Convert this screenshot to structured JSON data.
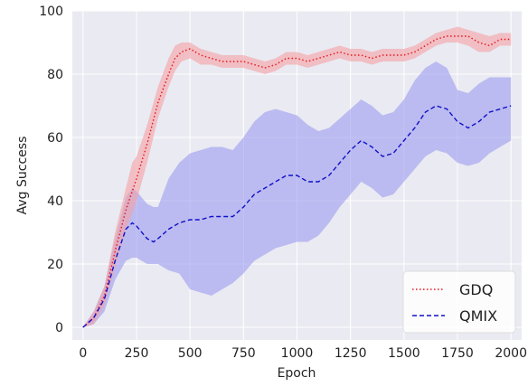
{
  "chart_data": {
    "type": "line",
    "xlabel": "Epoch",
    "ylabel": "Avg Success",
    "xlim": [
      -50,
      2050
    ],
    "ylim": [
      -4,
      100
    ],
    "xticks": [
      0,
      250,
      500,
      750,
      1000,
      1250,
      1500,
      1750,
      2000
    ],
    "yticks": [
      0,
      20,
      40,
      60,
      80,
      100
    ],
    "grid": true,
    "legend_position": "bottom-right",
    "colors": {
      "background": "#eaeaf2",
      "grid": "#ffffff"
    },
    "series": [
      {
        "name": "GDQ",
        "style": "dotted",
        "color": "#e8141c",
        "band_color": "#f4a0a4",
        "x": [
          0,
          50,
          100,
          150,
          200,
          230,
          250,
          300,
          350,
          400,
          430,
          460,
          500,
          550,
          600,
          650,
          700,
          750,
          800,
          850,
          900,
          950,
          1000,
          1050,
          1100,
          1150,
          1200,
          1250,
          1300,
          1350,
          1400,
          1450,
          1500,
          1550,
          1600,
          1650,
          1700,
          1750,
          1800,
          1850,
          1900,
          1950,
          2000
        ],
        "y": [
          0,
          3,
          10,
          24,
          37,
          43,
          47,
          58,
          71,
          80,
          85,
          87,
          88,
          86,
          85,
          84,
          84,
          84,
          83,
          82,
          83,
          85,
          85,
          84,
          85,
          86,
          87,
          86,
          86,
          85,
          86,
          86,
          86,
          87,
          89,
          91,
          92,
          92,
          92,
          90,
          89,
          91,
          91
        ],
        "lower": [
          0,
          1,
          7,
          19,
          31,
          36,
          40,
          52,
          66,
          76,
          81,
          84,
          85,
          83,
          83,
          82,
          82,
          82,
          81,
          80,
          81,
          83,
          83,
          82,
          83,
          84,
          85,
          84,
          84,
          83,
          84,
          84,
          84,
          85,
          87,
          89,
          90,
          90,
          89,
          87,
          87,
          89,
          89
        ],
        "upper": [
          0,
          5,
          13,
          30,
          44,
          52,
          54,
          64,
          76,
          85,
          89,
          90,
          90,
          88,
          87,
          86,
          86,
          86,
          85,
          84,
          85,
          87,
          87,
          86,
          87,
          88,
          89,
          88,
          88,
          87,
          88,
          88,
          88,
          89,
          91,
          93,
          94,
          95,
          94,
          93,
          92,
          93,
          93
        ]
      },
      {
        "name": "QMIX",
        "style": "dashed",
        "color": "#1010c8",
        "band_color": "#9b9bf0",
        "x": [
          0,
          50,
          100,
          150,
          200,
          230,
          250,
          300,
          330,
          350,
          400,
          450,
          500,
          550,
          600,
          650,
          700,
          750,
          800,
          850,
          900,
          950,
          1000,
          1050,
          1100,
          1150,
          1200,
          1250,
          1300,
          1350,
          1400,
          1450,
          1500,
          1550,
          1600,
          1650,
          1700,
          1750,
          1800,
          1850,
          1900,
          1950,
          2000
        ],
        "y": [
          0,
          3,
          9,
          21,
          31,
          33,
          32,
          28,
          27,
          28,
          31,
          33,
          34,
          34,
          35,
          35,
          35,
          38,
          42,
          44,
          46,
          48,
          48,
          46,
          46,
          48,
          52,
          56,
          59,
          57,
          54,
          55,
          59,
          63,
          68,
          70,
          69,
          65,
          63,
          65,
          68,
          69,
          70
        ],
        "lower": [
          0,
          1,
          5,
          15,
          21,
          22,
          22,
          20,
          20,
          20,
          18,
          17,
          12,
          11,
          10,
          12,
          14,
          17,
          21,
          23,
          25,
          26,
          27,
          27,
          29,
          33,
          38,
          42,
          46,
          44,
          41,
          42,
          46,
          50,
          54,
          56,
          55,
          52,
          51,
          52,
          55,
          57,
          59
        ],
        "upper": [
          0,
          5,
          13,
          28,
          41,
          44,
          43,
          39,
          38,
          38,
          47,
          52,
          55,
          56,
          57,
          57,
          56,
          60,
          65,
          68,
          69,
          68,
          67,
          64,
          62,
          63,
          66,
          69,
          72,
          70,
          67,
          68,
          72,
          78,
          82,
          84,
          82,
          75,
          74,
          77,
          79,
          79,
          79
        ]
      }
    ]
  }
}
